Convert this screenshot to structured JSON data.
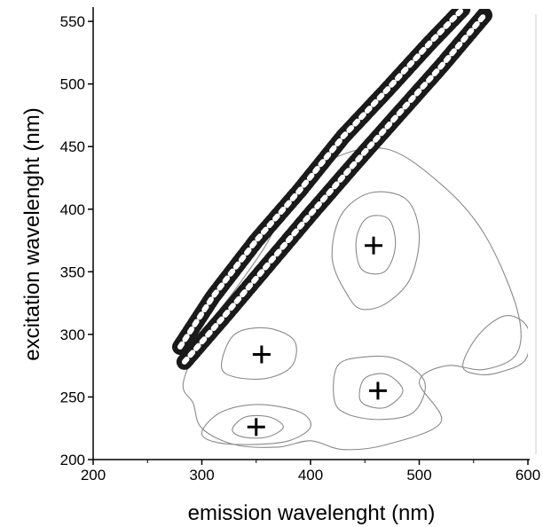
{
  "chart_data": {
    "type": "contour",
    "title": "",
    "xlabel": "emission wavelenght (nm)",
    "ylabel": "excitation wavelenght (nm)",
    "xlim": [
      200,
      600
    ],
    "ylim": [
      200,
      560
    ],
    "xticks": [
      200,
      300,
      400,
      500,
      600
    ],
    "yticks": [
      200,
      250,
      300,
      350,
      400,
      450,
      500,
      550
    ],
    "grid": false,
    "peaks": [
      {
        "x": 458,
        "y": 371
      },
      {
        "x": 355,
        "y": 284
      },
      {
        "x": 462,
        "y": 255
      },
      {
        "x": 350,
        "y": 226
      }
    ],
    "scatter_bands": [
      {
        "name": "",
        "points": [
          [
            280,
            290
          ],
          [
            310,
            330
          ],
          [
            350,
            375
          ],
          [
            390,
            415
          ],
          [
            430,
            458
          ],
          [
            470,
            495
          ],
          [
            510,
            533
          ],
          [
            540,
            560
          ]
        ]
      },
      {
        "name": "",
        "points": [
          [
            284,
            278
          ],
          [
            320,
            314
          ],
          [
            360,
            355
          ],
          [
            400,
            396
          ],
          [
            440,
            436
          ],
          [
            480,
            475
          ],
          [
            520,
            514
          ],
          [
            560,
            555
          ]
        ]
      }
    ],
    "contours": [
      {
        "level": 1,
        "points": [
          [
            283,
            262
          ],
          [
            305,
            305
          ],
          [
            330,
            335
          ],
          [
            358,
            370
          ],
          [
            385,
            412
          ],
          [
            420,
            440
          ],
          [
            470,
            448
          ],
          [
            520,
            420
          ],
          [
            560,
            380
          ],
          [
            590,
            320
          ],
          [
            590,
            285
          ],
          [
            560,
            272
          ],
          [
            525,
            275
          ],
          [
            500,
            262
          ],
          [
            520,
            230
          ],
          [
            470,
            212
          ],
          [
            430,
            208
          ],
          [
            400,
            215
          ],
          [
            370,
            210
          ],
          [
            330,
            212
          ],
          [
            300,
            225
          ],
          [
            292,
            245
          ]
        ]
      },
      {
        "level": 2,
        "points": [
          [
            435,
            330
          ],
          [
            420,
            360
          ],
          [
            428,
            395
          ],
          [
            455,
            413
          ],
          [
            488,
            408
          ],
          [
            500,
            380
          ],
          [
            492,
            345
          ],
          [
            470,
            325
          ],
          [
            448,
            320
          ]
        ]
      },
      {
        "level": 3,
        "points": [
          [
            447,
            352
          ],
          [
            442,
            375
          ],
          [
            452,
            393
          ],
          [
            472,
            392
          ],
          [
            478,
            370
          ],
          [
            468,
            350
          ]
        ]
      },
      {
        "level": 2,
        "points": [
          [
            318,
            275
          ],
          [
            330,
            300
          ],
          [
            360,
            305
          ],
          [
            385,
            295
          ],
          [
            383,
            275
          ],
          [
            360,
            265
          ],
          [
            330,
            266
          ]
        ]
      },
      {
        "level": 2,
        "points": [
          [
            422,
            247
          ],
          [
            425,
            275
          ],
          [
            450,
            282
          ],
          [
            480,
            280
          ],
          [
            505,
            262
          ],
          [
            495,
            238
          ],
          [
            465,
            232
          ],
          [
            435,
            236
          ]
        ]
      },
      {
        "level": 3,
        "points": [
          [
            445,
            250
          ],
          [
            450,
            265
          ],
          [
            470,
            268
          ],
          [
            485,
            255
          ],
          [
            470,
            242
          ],
          [
            452,
            243
          ]
        ]
      },
      {
        "level": 2,
        "points": [
          [
            300,
            222
          ],
          [
            318,
            238
          ],
          [
            352,
            244
          ],
          [
            390,
            238
          ],
          [
            400,
            226
          ],
          [
            380,
            215
          ],
          [
            345,
            212
          ],
          [
            312,
            214
          ]
        ]
      },
      {
        "level": 3,
        "points": [
          [
            328,
            224
          ],
          [
            340,
            234
          ],
          [
            362,
            234
          ],
          [
            375,
            226
          ],
          [
            360,
            218
          ],
          [
            338,
            218
          ]
        ]
      },
      {
        "level": 1,
        "points": [
          [
            540,
            275
          ],
          [
            555,
            300
          ],
          [
            580,
            315
          ],
          [
            600,
            305
          ],
          [
            598,
            280
          ],
          [
            575,
            270
          ],
          [
            555,
            268
          ]
        ]
      }
    ]
  }
}
